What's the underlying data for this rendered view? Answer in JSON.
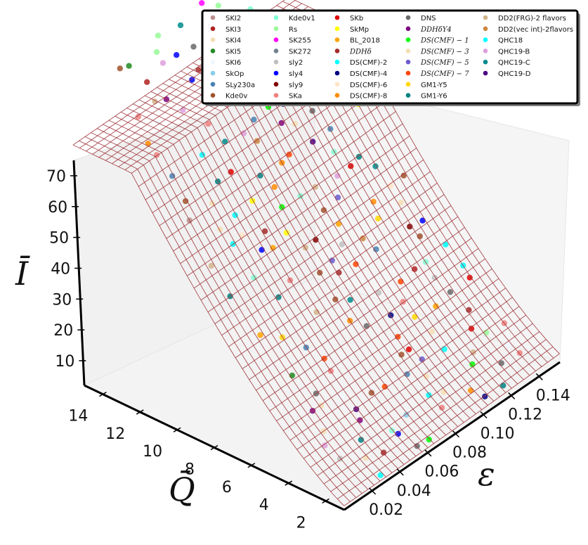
{
  "chart_data": {
    "type": "surface+scatter3d",
    "title": "",
    "axes": {
      "z": {
        "label": "Ī",
        "ticks": [
          "10",
          "20",
          "30",
          "40",
          "50",
          "60",
          "70"
        ],
        "range": [
          2,
          75
        ]
      },
      "y": {
        "label": "Q̄",
        "ticks": [
          "2",
          "4",
          "6",
          "8",
          "10",
          "12",
          "14"
        ],
        "range": [
          1,
          15
        ]
      },
      "x": {
        "label": "ɛ",
        "ticks": [
          "0.02",
          "0.04",
          "0.06",
          "0.08",
          "0.10",
          "0.12",
          "0.14"
        ],
        "range": [
          0.0,
          0.155
        ]
      }
    },
    "surface": {
      "style": "wireframe",
      "color": "#a0393e",
      "formula": "I = 1 + 2.3*Q^1.43 + 60*eps^2"
    },
    "legend": {
      "position": "top-right",
      "columns": 5,
      "entries": [
        {
          "label": "SKI2",
          "color": "#bc8f8f",
          "math": false
        },
        {
          "label": "SKI3",
          "color": "#b22222",
          "math": false
        },
        {
          "label": "SKI4",
          "color": "#f5deb3",
          "math": false
        },
        {
          "label": "SKI5",
          "color": "#228b22",
          "math": false
        },
        {
          "label": "SKI6",
          "color": "#f0f8ff",
          "math": false
        },
        {
          "label": "SkOp",
          "color": "#87ceeb",
          "math": false
        },
        {
          "label": "SLy230a",
          "color": "#4682b4",
          "math": false
        },
        {
          "label": "Kde0v",
          "color": "#a0522d",
          "math": false
        },
        {
          "label": "Kde0v1",
          "color": "#7fffd4",
          "math": false
        },
        {
          "label": "Rs",
          "color": "#98fb98",
          "math": false
        },
        {
          "label": "SK255",
          "color": "#ff00ff",
          "math": false
        },
        {
          "label": "SK272",
          "color": "#708090",
          "math": false
        },
        {
          "label": "sly2",
          "color": "#c0c0c0",
          "math": false
        },
        {
          "label": "sly4",
          "color": "#0000ff",
          "math": false
        },
        {
          "label": "sly9",
          "color": "#800000",
          "math": false
        },
        {
          "label": "SKa",
          "color": "#f08080",
          "math": false
        },
        {
          "label": "SKb",
          "color": "#e00000",
          "math": false
        },
        {
          "label": "SkMp",
          "color": "#ffff00",
          "math": false
        },
        {
          "label": "BL_2018",
          "color": "#ffa500",
          "math": false
        },
        {
          "label": "DDHδ",
          "color": "#a52a2a",
          "math": true
        },
        {
          "label": "DS(CMF)-2",
          "color": "#00ffff",
          "math": false
        },
        {
          "label": "DS(CMF)-4",
          "color": "#000080",
          "math": false
        },
        {
          "label": "DS(CMF)-6",
          "color": "#ffe4c4",
          "math": false
        },
        {
          "label": "DS(CMF)-8",
          "color": "#ff8c00",
          "math": false
        },
        {
          "label": "DNS",
          "color": "#696969",
          "math": false
        },
        {
          "label": "DDHδY4",
          "color": "#800080",
          "math": true
        },
        {
          "label": "DS(CMF) − 1",
          "color": "#00ff00",
          "math": true
        },
        {
          "label": "DS(CMF) − 3",
          "color": "#f5deb3",
          "math": true
        },
        {
          "label": "DS(CMF) − 5",
          "color": "#6a5acd",
          "math": true
        },
        {
          "label": "DS(CMF) − 7",
          "color": "#ff4500",
          "math": true
        },
        {
          "label": "GM1-Y5",
          "color": "#ffd700",
          "math": false
        },
        {
          "label": "GM1-Y6",
          "color": "#008080",
          "math": false
        },
        {
          "label": "DD2(FRG)-2 flavors",
          "color": "#d2b48c",
          "math": false
        },
        {
          "label": "DD2(vec int)-2flavors",
          "color": "#cd853f",
          "math": false
        },
        {
          "label": "QHC18",
          "color": "#00ffff",
          "math": false
        },
        {
          "label": "QHC19-B",
          "color": "#dda0dd",
          "math": false
        },
        {
          "label": "QHC19-C",
          "color": "#008b8b",
          "math": false
        },
        {
          "label": "QHC19-D",
          "color": "#4b0082",
          "math": false
        }
      ]
    }
  }
}
